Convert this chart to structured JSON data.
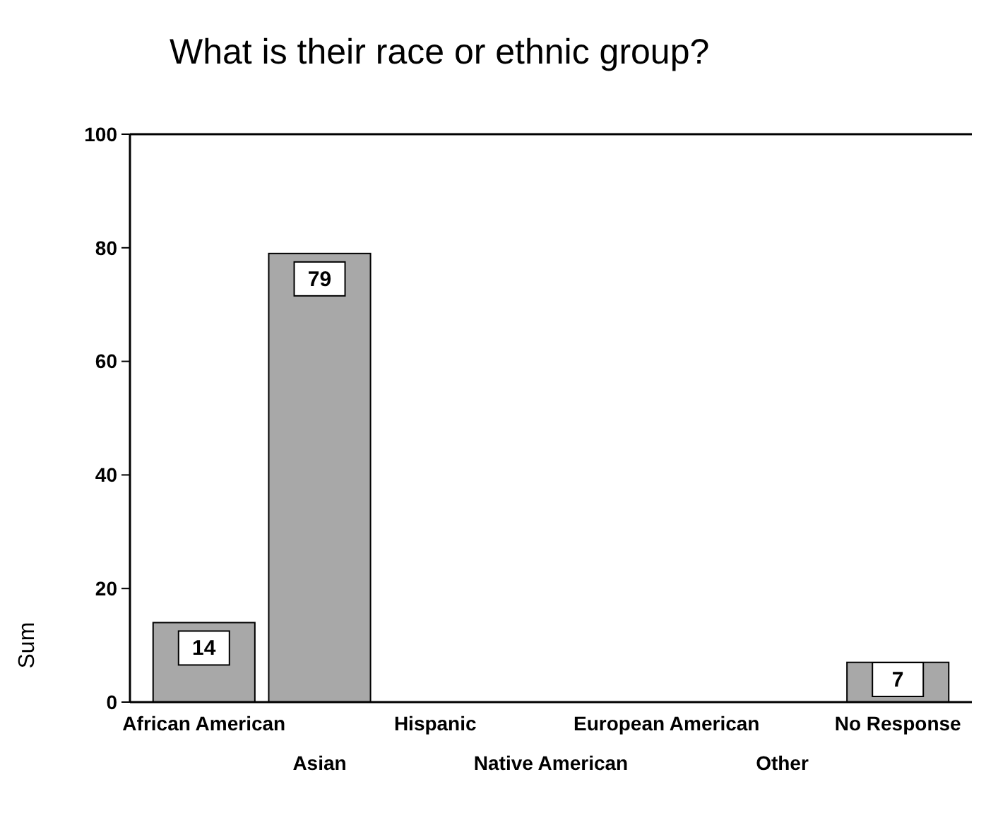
{
  "chart_data": {
    "type": "bar",
    "title": "What is their race or ethnic group?",
    "ylabel": "Sum",
    "categories": [
      "African American",
      "Asian",
      "Hispanic",
      "Native American",
      "European American",
      "Other",
      "No Response"
    ],
    "values": [
      14,
      79,
      0,
      0,
      0,
      0,
      7
    ],
    "value_labels": [
      "14",
      "79",
      null,
      null,
      null,
      null,
      "7"
    ],
    "color": "#a8a8a8",
    "ylim": [
      0,
      100
    ],
    "yticks": [
      0,
      20,
      40,
      60,
      80,
      100
    ],
    "grid": false
  }
}
